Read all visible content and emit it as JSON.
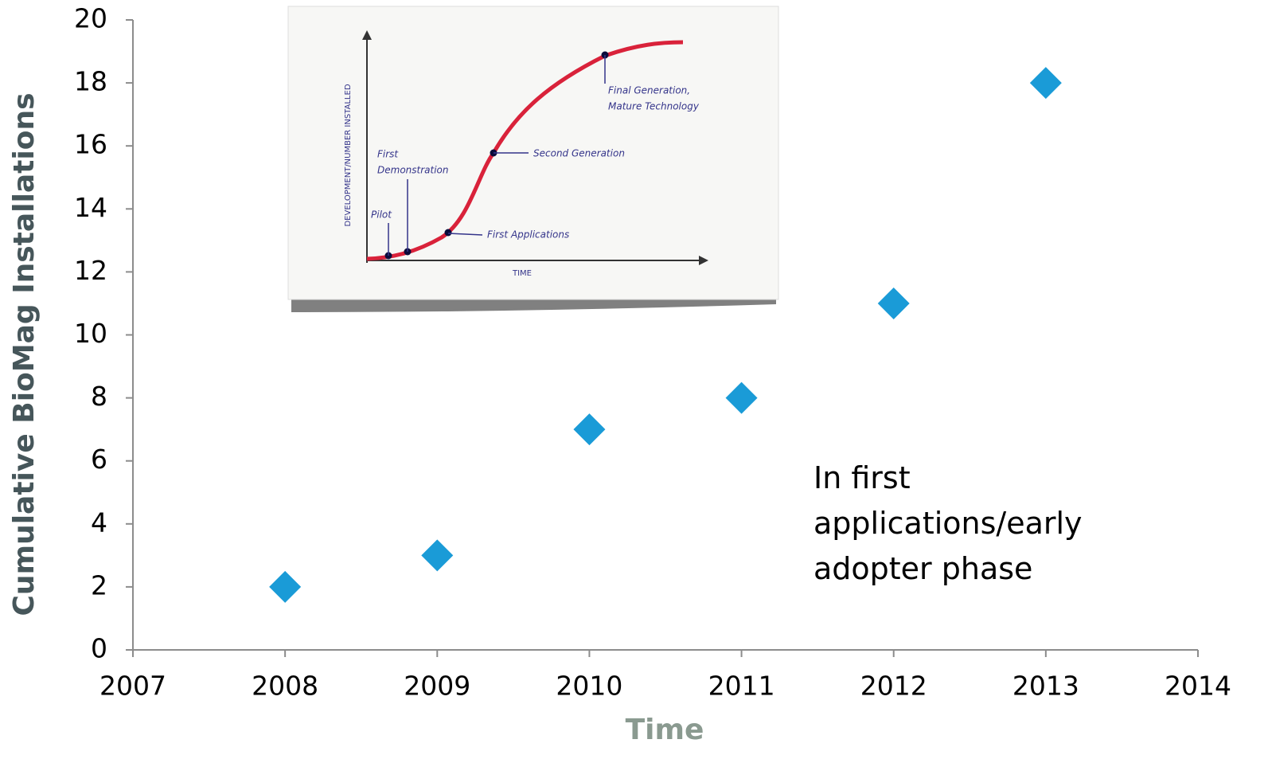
{
  "chart_data": {
    "type": "scatter",
    "x_label": "Time",
    "y_label": "Cumulative BioMag Installations",
    "x": [
      2008,
      2009,
      2010,
      2011,
      2012,
      2013
    ],
    "series": [
      {
        "color": "#1a9bd7",
        "values": [
          2,
          3,
          7,
          8,
          11,
          18
        ]
      }
    ],
    "xlim": [
      2007,
      2014
    ],
    "xticks": [
      2007,
      2008,
      2009,
      2010,
      2011,
      2012,
      2013,
      2014
    ],
    "ylim": [
      0,
      20
    ],
    "yticks": [
      0,
      2,
      4,
      6,
      8,
      10,
      12,
      14,
      16,
      18,
      20
    ],
    "grid": false,
    "annotation": "In first applications/early adopter phase",
    "inset": {
      "y_label": "DEVELOPMENT/NUMBER INSTALLED",
      "x_label": "TIME",
      "labels": [
        "Pilot",
        "First",
        "Demonstration",
        "First Applications",
        "Second Generation",
        "Final Generation,",
        "Mature Technology"
      ]
    }
  }
}
